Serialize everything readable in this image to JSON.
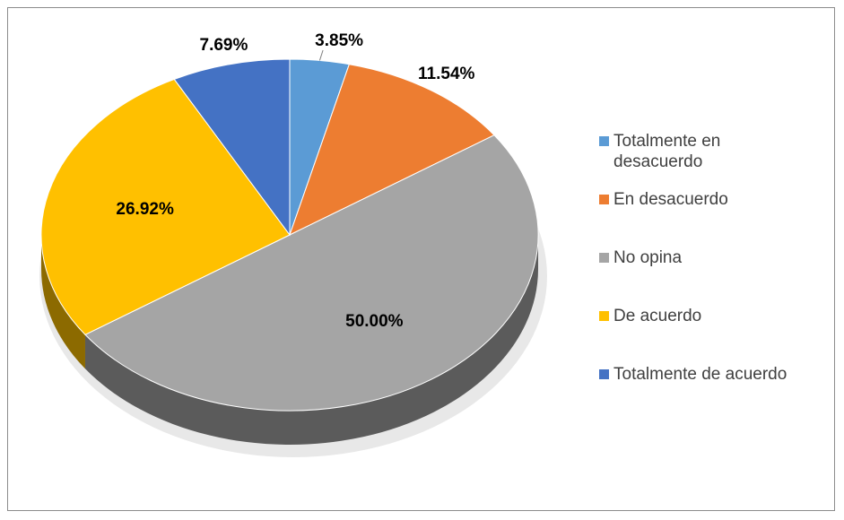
{
  "chart_data": {
    "type": "pie",
    "categories": [
      "Totalmente en desacuerdo",
      "En desacuerdo",
      "No opina",
      "De acuerdo",
      "Totalmente de acuerdo"
    ],
    "values": [
      3.85,
      11.54,
      50.0,
      26.92,
      7.69
    ],
    "value_labels": [
      "3.85%",
      "11.54%",
      "50.00%",
      "26.92%",
      "7.69%"
    ],
    "colors": [
      "#5b9bd5",
      "#ed7d31",
      "#a5a5a5",
      "#ffc000",
      "#4472c4"
    ],
    "legend": "right"
  }
}
